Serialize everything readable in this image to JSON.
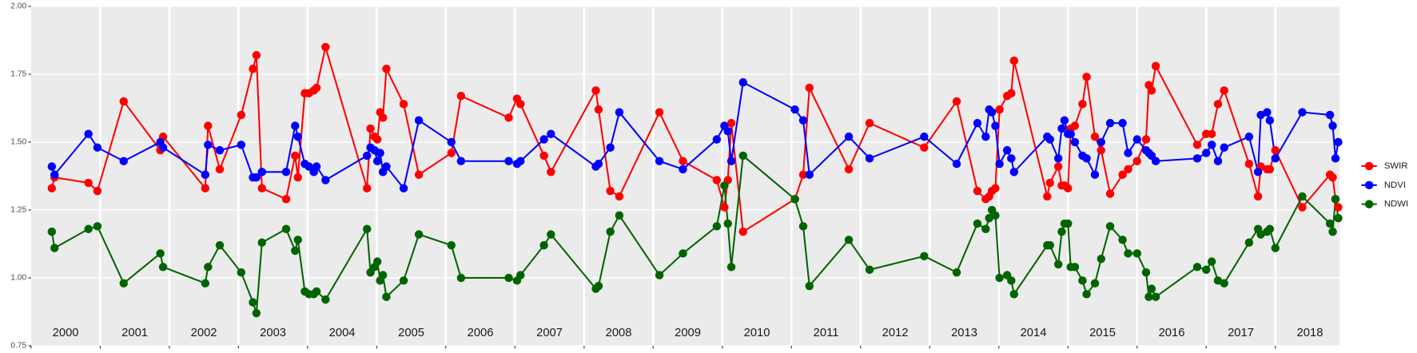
{
  "chart_data": {
    "type": "line",
    "x": [
      2000.3,
      2000.34,
      2000.83,
      2000.96,
      2001.34,
      2001.87,
      2001.91,
      2002.52,
      2002.56,
      2002.73,
      2003.04,
      2003.21,
      2003.26,
      2003.34,
      2003.69,
      2003.82,
      2003.86,
      2003.96,
      2004.02,
      2004.09,
      2004.13,
      2004.26,
      2004.86,
      2004.91,
      2004.97,
      2005.01,
      2005.05,
      2005.09,
      2005.14,
      2005.39,
      2005.61,
      2006.08,
      2006.22,
      2006.91,
      2007.03,
      2007.08,
      2007.42,
      2007.52,
      2008.17,
      2008.21,
      2008.38,
      2008.51,
      2009.09,
      2009.43,
      2009.92,
      2010.03,
      2010.08,
      2010.13,
      2010.3,
      2011.05,
      2011.17,
      2011.26,
      2011.83,
      2012.13,
      2012.92,
      2013.39,
      2013.69,
      2013.81,
      2013.86,
      2013.9,
      2013.95,
      2014.01,
      2014.12,
      2014.18,
      2014.22,
      2014.7,
      2014.74,
      2014.86,
      2014.91,
      2014.95,
      2015.0,
      2015.04,
      2015.1,
      2015.21,
      2015.27,
      2015.39,
      2015.48,
      2015.61,
      2015.79,
      2015.87,
      2016.0,
      2016.13,
      2016.17,
      2016.21,
      2016.27,
      2016.87,
      2017.0,
      2017.08,
      2017.17,
      2017.26,
      2017.62,
      2017.75,
      2017.79,
      2017.88,
      2017.92,
      2018.0,
      2018.39,
      2018.79,
      2018.83,
      2018.87,
      2018.91
    ],
    "series": [
      {
        "name": "SWIR",
        "color": "#ff0000",
        "values": [
          1.33,
          1.37,
          1.35,
          1.32,
          1.65,
          1.47,
          1.52,
          1.33,
          1.56,
          1.4,
          1.6,
          1.77,
          1.82,
          1.33,
          1.29,
          1.45,
          1.37,
          1.68,
          1.68,
          1.69,
          1.7,
          1.85,
          1.33,
          1.55,
          1.52,
          1.51,
          1.61,
          1.59,
          1.77,
          1.64,
          1.38,
          1.46,
          1.67,
          1.59,
          1.66,
          1.64,
          1.45,
          1.39,
          1.69,
          1.62,
          1.32,
          1.3,
          1.61,
          1.43,
          1.36,
          1.26,
          1.36,
          1.57,
          1.17,
          1.29,
          1.38,
          1.7,
          1.4,
          1.57,
          1.48,
          1.65,
          1.32,
          1.29,
          1.3,
          1.32,
          1.33,
          1.62,
          1.67,
          1.68,
          1.8,
          1.3,
          1.35,
          1.41,
          1.34,
          1.34,
          1.33,
          1.55,
          1.56,
          1.64,
          1.74,
          1.52,
          1.47,
          1.31,
          1.38,
          1.4,
          1.43,
          1.51,
          1.71,
          1.69,
          1.78,
          1.49,
          1.53,
          1.53,
          1.64,
          1.69,
          1.42,
          1.3,
          1.41,
          1.4,
          1.4,
          1.47,
          1.26,
          1.38,
          1.37,
          1.29,
          1.26
        ]
      },
      {
        "name": "NDVI",
        "color": "#0000ff",
        "values": [
          1.41,
          1.38,
          1.53,
          1.48,
          1.43,
          1.5,
          1.48,
          1.38,
          1.49,
          1.47,
          1.49,
          1.37,
          1.37,
          1.39,
          1.39,
          1.56,
          1.52,
          1.42,
          1.41,
          1.39,
          1.41,
          1.36,
          1.45,
          1.48,
          1.47,
          1.43,
          1.46,
          1.39,
          1.41,
          1.33,
          1.58,
          1.5,
          1.43,
          1.43,
          1.42,
          1.43,
          1.51,
          1.53,
          1.41,
          1.42,
          1.48,
          1.61,
          1.43,
          1.4,
          1.51,
          1.56,
          1.54,
          1.43,
          1.72,
          1.62,
          1.58,
          1.38,
          1.52,
          1.44,
          1.52,
          1.42,
          1.57,
          1.52,
          1.62,
          1.61,
          1.56,
          1.42,
          1.47,
          1.44,
          1.39,
          1.52,
          1.51,
          1.44,
          1.55,
          1.58,
          1.53,
          1.53,
          1.5,
          1.45,
          1.44,
          1.38,
          1.5,
          1.57,
          1.57,
          1.46,
          1.51,
          1.47,
          1.46,
          1.45,
          1.43,
          1.44,
          1.46,
          1.49,
          1.43,
          1.48,
          1.52,
          1.39,
          1.6,
          1.61,
          1.58,
          1.44,
          1.61,
          1.6,
          1.56,
          1.44,
          1.5
        ]
      },
      {
        "name": "NDWI",
        "color": "#006400",
        "values": [
          1.17,
          1.11,
          1.18,
          1.19,
          0.98,
          1.09,
          1.04,
          0.98,
          1.04,
          1.12,
          1.02,
          0.91,
          0.87,
          1.13,
          1.18,
          1.1,
          1.14,
          0.95,
          0.94,
          0.94,
          0.95,
          0.92,
          1.18,
          1.02,
          1.04,
          1.06,
          0.99,
          1.01,
          0.93,
          0.99,
          1.16,
          1.12,
          1.0,
          1.0,
          0.99,
          1.01,
          1.12,
          1.16,
          0.96,
          0.97,
          1.17,
          1.23,
          1.01,
          1.09,
          1.19,
          1.34,
          1.2,
          1.04,
          1.45,
          1.29,
          1.19,
          0.97,
          1.14,
          1.03,
          1.08,
          1.02,
          1.2,
          1.18,
          1.22,
          1.25,
          1.23,
          1.0,
          1.01,
          0.99,
          0.94,
          1.12,
          1.12,
          1.05,
          1.17,
          1.2,
          1.2,
          1.04,
          1.04,
          0.99,
          0.94,
          0.98,
          1.07,
          1.19,
          1.14,
          1.09,
          1.09,
          1.02,
          0.93,
          0.96,
          0.93,
          1.04,
          1.03,
          1.06,
          0.99,
          0.98,
          1.13,
          1.18,
          1.16,
          1.17,
          1.18,
          1.11,
          1.3,
          1.2,
          1.17,
          1.29,
          1.22
        ]
      }
    ],
    "xlim": [
      2000,
      2018.93
    ],
    "xticks": [
      2000,
      2001,
      2002,
      2003,
      2004,
      2005,
      2006,
      2007,
      2008,
      2009,
      2010,
      2011,
      2012,
      2013,
      2014,
      2015,
      2016,
      2017,
      2018
    ],
    "ylim": [
      0.75,
      2.0
    ],
    "yticks": [
      0.75,
      {
        "value": 1.0,
        "label": "1.00"
      },
      1.25,
      {
        "value": 1.5,
        "label": "1.50"
      },
      1.75,
      {
        "value": 2.0,
        "label": "2.00"
      }
    ],
    "grid": true,
    "legend": "right"
  }
}
